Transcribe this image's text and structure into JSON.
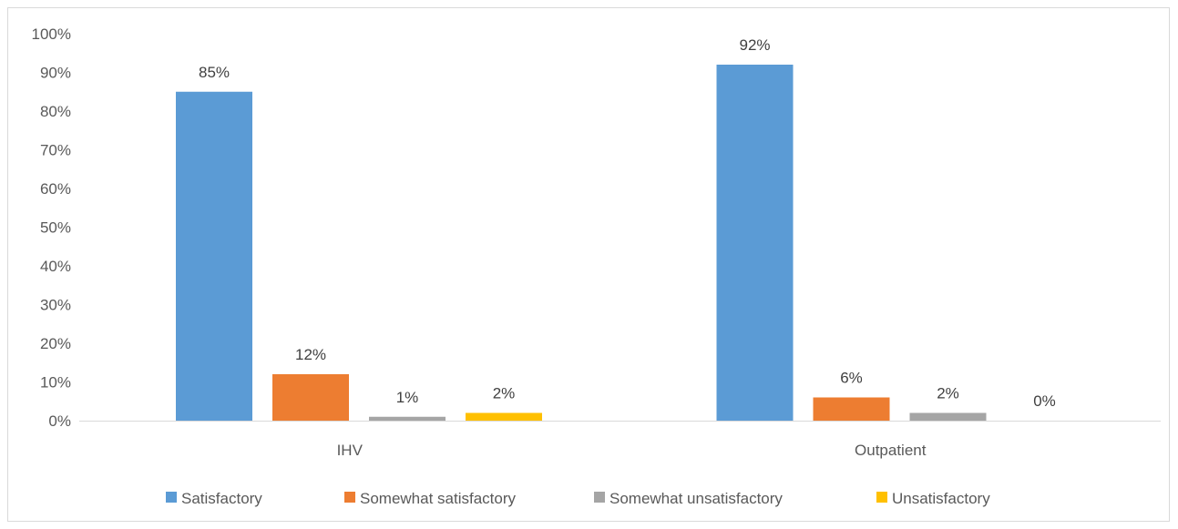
{
  "chart_data": {
    "type": "bar",
    "title": "",
    "xlabel": "",
    "ylabel": "",
    "categories": [
      "IHV",
      "Outpatient"
    ],
    "series": [
      {
        "name": "Satisfactory",
        "color": "#5B9BD5",
        "values": [
          85,
          92
        ],
        "labels": [
          "85%",
          "92%"
        ]
      },
      {
        "name": "Somewhat satisfactory",
        "color": "#ED7D31",
        "values": [
          12,
          6
        ],
        "labels": [
          "12%",
          "6%"
        ]
      },
      {
        "name": "Somewhat unsatisfactory",
        "color": "#A5A5A5",
        "values": [
          1,
          2
        ],
        "labels": [
          "1%",
          "2%"
        ]
      },
      {
        "name": "Unsatisfactory",
        "color": "#FFC000",
        "values": [
          2,
          0
        ],
        "labels": [
          "2%",
          "0%"
        ]
      }
    ],
    "ylim": [
      0,
      100
    ],
    "yticks": [
      "0%",
      "10%",
      "20%",
      "30%",
      "40%",
      "50%",
      "60%",
      "70%",
      "80%",
      "90%",
      "100%"
    ],
    "grid": false,
    "legend_position": "bottom"
  }
}
